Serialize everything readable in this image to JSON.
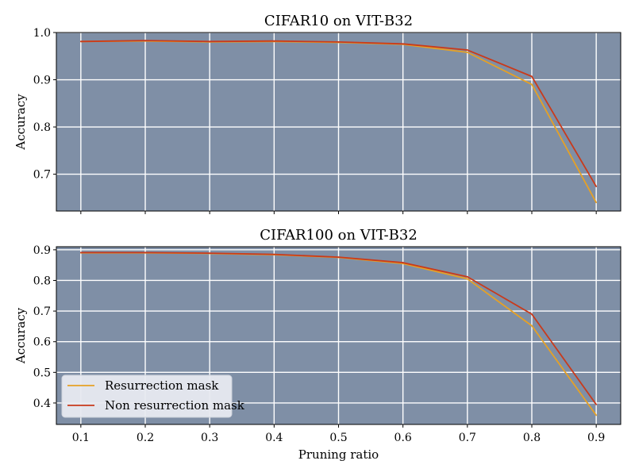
{
  "chart_data": [
    {
      "type": "line",
      "title": "CIFAR10 on VIT-B32",
      "xlabel": "",
      "ylabel": "Accuracy",
      "x": [
        0.1,
        0.2,
        0.3,
        0.4,
        0.5,
        0.6,
        0.7,
        0.8,
        0.9
      ],
      "xticks": [
        "0.1",
        "0.2",
        "0.3",
        "0.4",
        "0.5",
        "0.6",
        "0.7",
        "0.8",
        "0.9"
      ],
      "xticks_visible": false,
      "yticks": [
        "0.7",
        "0.8",
        "0.9",
        "1.0"
      ],
      "ylim": [
        0.622,
        1.0
      ],
      "grid": true,
      "background": "#7f8fa6",
      "series": [
        {
          "name": "Resurrection mask",
          "color": "#e6a125",
          "values": [
            0.981,
            0.982,
            0.98,
            0.981,
            0.979,
            0.975,
            0.958,
            0.89,
            0.64
          ]
        },
        {
          "name": "Non resurrection mask",
          "color": "#c93a1b",
          "values": [
            0.981,
            0.983,
            0.981,
            0.982,
            0.98,
            0.976,
            0.963,
            0.907,
            0.674
          ]
        }
      ]
    },
    {
      "type": "line",
      "title": "CIFAR100 on VIT-B32",
      "xlabel": "Pruning ratio",
      "ylabel": "Accuracy",
      "x": [
        0.1,
        0.2,
        0.3,
        0.4,
        0.5,
        0.6,
        0.7,
        0.8,
        0.9
      ],
      "xticks": [
        "0.1",
        "0.2",
        "0.3",
        "0.4",
        "0.5",
        "0.6",
        "0.7",
        "0.8",
        "0.9"
      ],
      "xticks_visible": true,
      "yticks": [
        "0.4",
        "0.5",
        "0.6",
        "0.7",
        "0.8",
        "0.9"
      ],
      "ylim": [
        0.33,
        0.91
      ],
      "grid": true,
      "background": "#7f8fa6",
      "legend": "lower-left",
      "series": [
        {
          "name": "Resurrection mask",
          "color": "#e6a125",
          "values": [
            0.89,
            0.89,
            0.888,
            0.884,
            0.875,
            0.855,
            0.805,
            0.652,
            0.36
          ]
        },
        {
          "name": "Non resurrection mask",
          "color": "#c93a1b",
          "values": [
            0.891,
            0.891,
            0.889,
            0.885,
            0.876,
            0.858,
            0.812,
            0.69,
            0.395
          ]
        }
      ]
    }
  ]
}
